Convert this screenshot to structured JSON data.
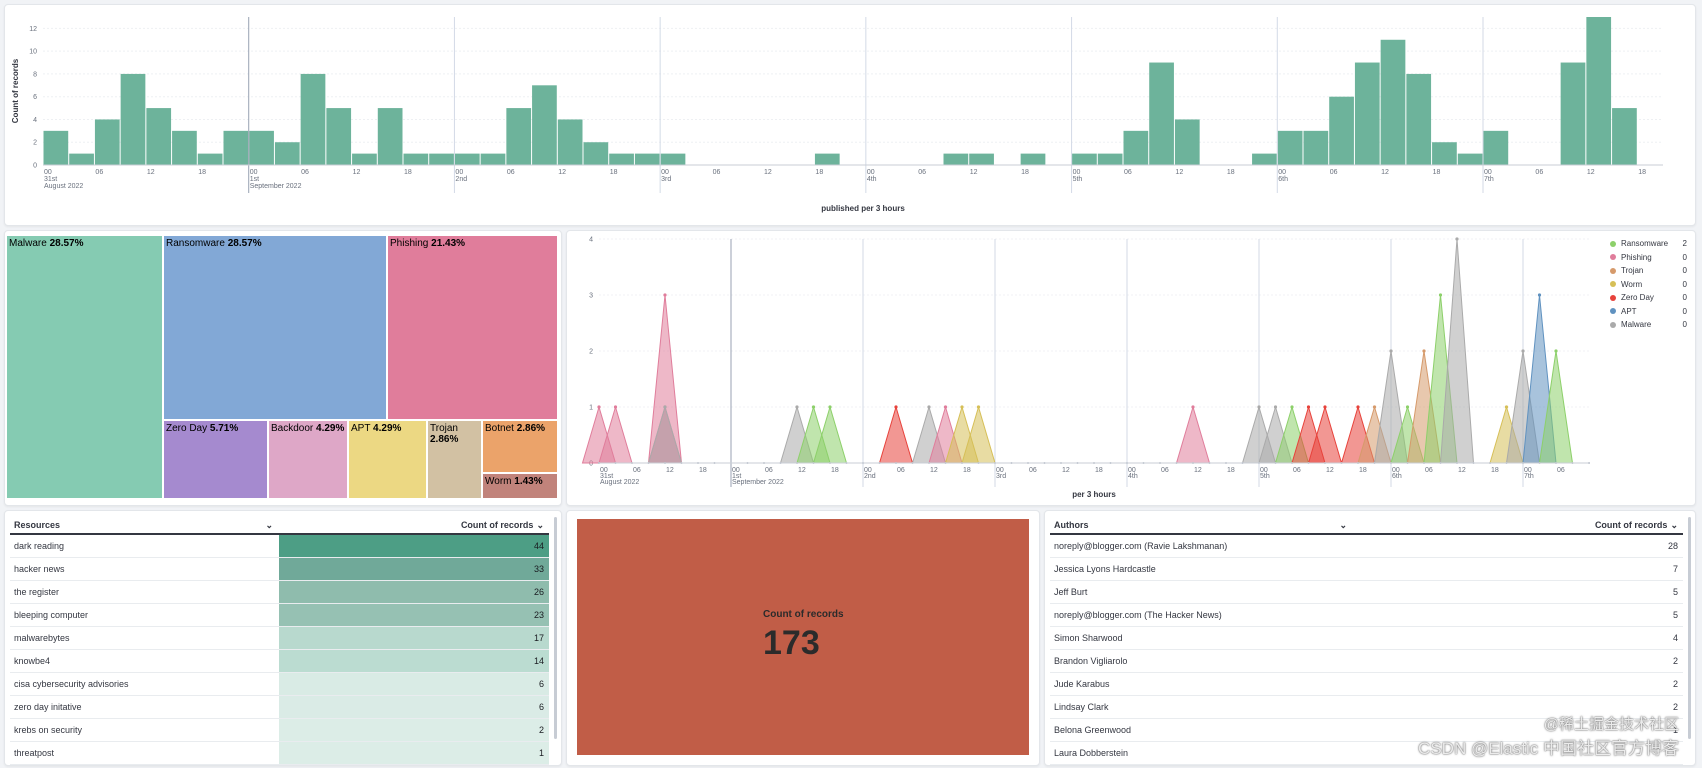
{
  "chart_data": [
    {
      "type": "bar",
      "ylabel": "Count of records",
      "xlabel": "published per 3 hours",
      "ylim": [
        0,
        13
      ],
      "yticks": [
        "0",
        "2",
        "4",
        "6",
        "8",
        "10",
        "12"
      ],
      "values": [
        3,
        1,
        4,
        8,
        5,
        3,
        1,
        3,
        3,
        2,
        8,
        5,
        1,
        5,
        1,
        1,
        1,
        1,
        5,
        7,
        4,
        2,
        1,
        1,
        1,
        0,
        0,
        0,
        0,
        0,
        1,
        0,
        0,
        0,
        0,
        1,
        1,
        0,
        1,
        0,
        1,
        1,
        3,
        9,
        4,
        0,
        0,
        1,
        3,
        3,
        6,
        9,
        11,
        8,
        2,
        1,
        3,
        0,
        0,
        9,
        13,
        5
      ],
      "day_markers": [
        {
          "hour": "00",
          "day": "31st",
          "month": "August 2022"
        },
        {
          "hour": "00",
          "day": "1st",
          "month": "September 2022"
        },
        {
          "hour": "00",
          "day": "2nd",
          "month": ""
        },
        {
          "hour": "00",
          "day": "3rd",
          "month": ""
        },
        {
          "hour": "00",
          "day": "4th",
          "month": ""
        },
        {
          "hour": "00",
          "day": "5th",
          "month": ""
        },
        {
          "hour": "00",
          "day": "6th",
          "month": ""
        },
        {
          "hour": "00",
          "day": "7th",
          "month": ""
        }
      ],
      "hour_ticks": [
        "06",
        "12",
        "18"
      ],
      "color": "#6db39b"
    },
    {
      "type": "treemap",
      "items": [
        {
          "name": "Malware",
          "pct": "28.57%",
          "color": "#85cbb2"
        },
        {
          "name": "Ransomware",
          "pct": "28.57%",
          "color": "#82a8d6"
        },
        {
          "name": "Phishing",
          "pct": "21.43%",
          "color": "#e07d9b"
        },
        {
          "name": "Zero Day",
          "pct": "5.71%",
          "color": "#a58acf"
        },
        {
          "name": "Backdoor",
          "pct": "4.29%",
          "color": "#dea7c7"
        },
        {
          "name": "APT",
          "pct": "4.29%",
          "color": "#ecd883"
        },
        {
          "name": "Trojan",
          "pct": "2.86%",
          "color": "#d2c1a3"
        },
        {
          "name": "Botnet",
          "pct": "2.86%",
          "color": "#eba36a"
        },
        {
          "name": "Worm",
          "pct": "1.43%",
          "color": "#c1837b"
        }
      ]
    },
    {
      "type": "area",
      "xlabel": "per 3 hours",
      "ylim": [
        0,
        4
      ],
      "yticks": [
        "0",
        "1",
        "2",
        "3",
        "4"
      ],
      "legend_position": "top-right",
      "series": [
        {
          "name": "Ransomware",
          "legend_value": "2",
          "color": "#8dd06a"
        },
        {
          "name": "Phishing",
          "legend_value": "0",
          "color": "#e07d9b"
        },
        {
          "name": "Trojan",
          "legend_value": "0",
          "color": "#d69a6b"
        },
        {
          "name": "Worm",
          "legend_value": "0",
          "color": "#d6bf57"
        },
        {
          "name": "Zero Day",
          "legend_value": "0",
          "color": "#e7423b"
        },
        {
          "name": "APT",
          "legend_value": "0",
          "color": "#6092c0"
        },
        {
          "name": "Malware",
          "legend_value": "0",
          "color": "#aaaaaa"
        }
      ],
      "peaks": [
        {
          "series": "Phishing",
          "x": 0,
          "y": 1
        },
        {
          "series": "Phishing",
          "x": 1,
          "y": 1
        },
        {
          "series": "Phishing",
          "x": 4,
          "y": 3
        },
        {
          "series": "Phishing",
          "x": 4,
          "y": 1
        },
        {
          "series": "Malware",
          "x": 4,
          "y": 1
        },
        {
          "series": "Malware",
          "x": 12,
          "y": 1
        },
        {
          "series": "Ransomware",
          "x": 13,
          "y": 1
        },
        {
          "series": "Ransomware",
          "x": 14,
          "y": 1
        },
        {
          "series": "Zero Day",
          "x": 18,
          "y": 1
        },
        {
          "series": "Malware",
          "x": 20,
          "y": 1
        },
        {
          "series": "Phishing",
          "x": 21,
          "y": 1
        },
        {
          "series": "Worm",
          "x": 22,
          "y": 1
        },
        {
          "series": "Worm",
          "x": 23,
          "y": 1
        },
        {
          "series": "Phishing",
          "x": 36,
          "y": 1
        },
        {
          "series": "Malware",
          "x": 40,
          "y": 1
        },
        {
          "series": "Malware",
          "x": 41,
          "y": 1
        },
        {
          "series": "Ransomware",
          "x": 42,
          "y": 1
        },
        {
          "series": "Zero Day",
          "x": 43,
          "y": 1
        },
        {
          "series": "Zero Day",
          "x": 44,
          "y": 1
        },
        {
          "series": "Zero Day",
          "x": 46,
          "y": 1
        },
        {
          "series": "Trojan",
          "x": 47,
          "y": 1
        },
        {
          "series": "Malware",
          "x": 48,
          "y": 2
        },
        {
          "series": "Ransomware",
          "x": 49,
          "y": 1
        },
        {
          "series": "Trojan",
          "x": 50,
          "y": 2
        },
        {
          "series": "Ransomware",
          "x": 51,
          "y": 3
        },
        {
          "series": "Malware",
          "x": 52,
          "y": 4
        },
        {
          "series": "Worm",
          "x": 55,
          "y": 1
        },
        {
          "series": "Malware",
          "x": 56,
          "y": 2
        },
        {
          "series": "APT",
          "x": 57,
          "y": 3
        },
        {
          "series": "Ransomware",
          "x": 58,
          "y": 2
        }
      ],
      "day_markers": [
        {
          "hour": "00",
          "day": "31st",
          "month": "August 2022"
        },
        {
          "hour": "00",
          "day": "1st",
          "month": "September 2022"
        },
        {
          "hour": "00",
          "day": "2nd",
          "month": ""
        },
        {
          "hour": "00",
          "day": "3rd",
          "month": ""
        },
        {
          "hour": "00",
          "day": "4th",
          "month": ""
        },
        {
          "hour": "00",
          "day": "5th",
          "month": ""
        },
        {
          "hour": "00",
          "day": "6th",
          "month": ""
        },
        {
          "hour": "00",
          "day": "7th",
          "month": ""
        }
      ],
      "hour_ticks": [
        "06",
        "12",
        "18"
      ]
    }
  ],
  "resources": {
    "col1": "Resources",
    "col2": "Count of records",
    "rows": [
      {
        "name": "dark reading",
        "count": "44",
        "v": 44
      },
      {
        "name": "hacker news",
        "count": "33",
        "v": 33
      },
      {
        "name": "the register",
        "count": "26",
        "v": 26
      },
      {
        "name": "bleeping computer",
        "count": "23",
        "v": 23
      },
      {
        "name": "malwarebytes",
        "count": "17",
        "v": 17
      },
      {
        "name": "knowbe4",
        "count": "14",
        "v": 14
      },
      {
        "name": "cisa cybersecurity advisories",
        "count": "6",
        "v": 6
      },
      {
        "name": "zero day initative",
        "count": "6",
        "v": 6
      },
      {
        "name": "krebs on security",
        "count": "2",
        "v": 2
      },
      {
        "name": "threatpost",
        "count": "1",
        "v": 1
      }
    ]
  },
  "metric": {
    "label": "Count of records",
    "value": "173",
    "color": "#c15d47"
  },
  "authors": {
    "col1": "Authors",
    "col2": "Count of records",
    "rows": [
      {
        "name": "noreply@blogger.com (Ravie Lakshmanan)",
        "count": "28"
      },
      {
        "name": "Jessica Lyons Hardcastle",
        "count": "7"
      },
      {
        "name": "Jeff Burt",
        "count": "5"
      },
      {
        "name": "noreply@blogger.com (The Hacker News)",
        "count": "5"
      },
      {
        "name": "Simon Sharwood",
        "count": "4"
      },
      {
        "name": "Brandon Vigliarolo",
        "count": "2"
      },
      {
        "name": "Jude Karabus",
        "count": "2"
      },
      {
        "name": "Lindsay Clark",
        "count": "2"
      },
      {
        "name": "Belona Greenwood",
        "count": "1"
      },
      {
        "name": "Laura Dobberstein",
        "count": ""
      }
    ]
  },
  "watermark": "CSDN @Elastic 中国社区官方博客",
  "watermark2": "@稀土掘金技术社区"
}
